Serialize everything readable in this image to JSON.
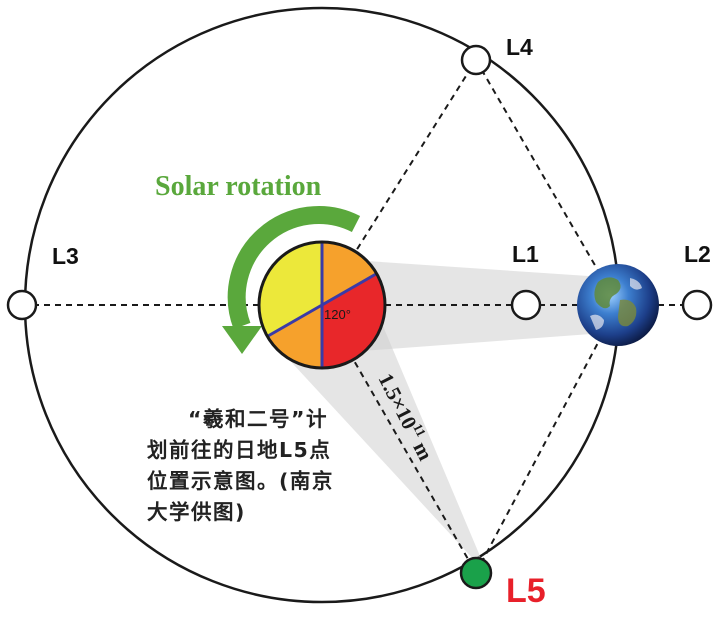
{
  "labels": {
    "l1": "L1",
    "l2": "L2",
    "l3": "L3",
    "l4": "L4",
    "l5": "L5"
  },
  "solar_rotation": "Solar rotation",
  "angle": "120°",
  "distance": "1.5×10",
  "distance_exp": "11",
  "distance_unit": " m",
  "caption": "“羲和二号”计划前往的日地L5点位置示意图。(南京大学供图)",
  "colors": {
    "l5_point": "#1aa14a",
    "l5_label": "#e8202a",
    "rotation_arrow": "#5aa83c",
    "sun_yellow": "#ece83a",
    "sun_orange": "#f6a12c",
    "sun_red": "#e8272a",
    "sun_divider": "#3a3aa8"
  }
}
